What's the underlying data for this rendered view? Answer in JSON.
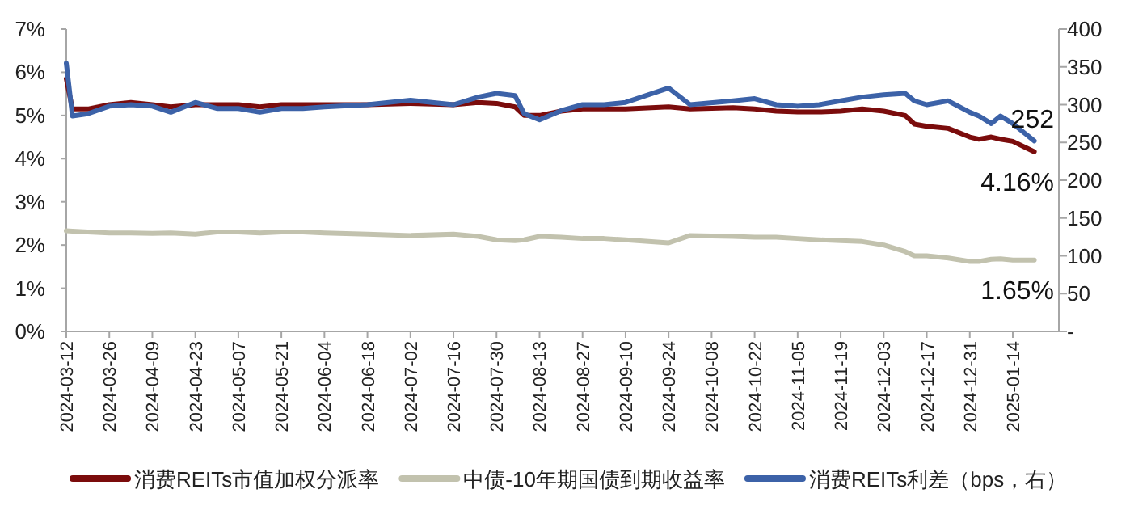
{
  "chart_data": {
    "type": "line",
    "x": [
      "2024-03-12",
      "2024-03-14",
      "2024-03-19",
      "2024-03-26",
      "2024-04-02",
      "2024-04-09",
      "2024-04-15",
      "2024-04-23",
      "2024-04-30",
      "2024-05-07",
      "2024-05-14",
      "2024-05-21",
      "2024-05-28",
      "2024-06-04",
      "2024-06-18",
      "2024-07-02",
      "2024-07-16",
      "2024-07-24",
      "2024-07-30",
      "2024-08-05",
      "2024-08-08",
      "2024-08-13",
      "2024-08-20",
      "2024-08-27",
      "2024-09-03",
      "2024-09-10",
      "2024-09-24",
      "2024-10-01",
      "2024-10-15",
      "2024-10-22",
      "2024-10-29",
      "2024-11-05",
      "2024-11-12",
      "2024-11-19",
      "2024-11-26",
      "2024-12-03",
      "2024-12-10",
      "2024-12-13",
      "2024-12-17",
      "2024-12-24",
      "2024-12-31",
      "2025-01-03",
      "2025-01-07",
      "2025-01-10",
      "2025-01-14",
      "2025-01-21"
    ],
    "series": [
      {
        "name": "消费REITs市值加权分派率",
        "color": "#7b0c0c",
        "values": [
          5.85,
          5.15,
          5.15,
          5.25,
          5.3,
          5.25,
          5.2,
          5.25,
          5.25,
          5.25,
          5.2,
          5.25,
          5.25,
          5.25,
          5.25,
          5.28,
          5.25,
          5.3,
          5.28,
          5.2,
          5.0,
          5.0,
          5.1,
          5.15,
          5.15,
          5.15,
          5.2,
          5.15,
          5.18,
          5.15,
          5.1,
          5.08,
          5.08,
          5.1,
          5.15,
          5.1,
          5.0,
          4.8,
          4.75,
          4.7,
          4.5,
          4.45,
          4.5,
          4.45,
          4.4,
          4.16
        ],
        "value_labels": [
          null,
          null,
          null,
          null,
          null,
          null,
          null,
          null,
          null,
          null,
          null,
          null,
          null,
          null,
          null,
          null,
          null,
          null,
          null,
          null,
          null,
          null,
          null,
          null,
          null,
          null,
          null,
          null,
          null,
          null,
          null,
          null,
          null,
          null,
          null,
          null,
          null,
          null,
          null,
          null,
          null,
          null,
          null,
          null,
          null,
          "4.16%"
        ]
      },
      {
        "name": "中债-10年期国债到期收益率",
        "color": "#c2c2ae",
        "values": [
          2.33,
          2.32,
          2.3,
          2.28,
          2.28,
          2.27,
          2.28,
          2.25,
          2.3,
          2.3,
          2.28,
          2.3,
          2.3,
          2.28,
          2.25,
          2.22,
          2.25,
          2.2,
          2.12,
          2.1,
          2.12,
          2.2,
          2.18,
          2.15,
          2.15,
          2.12,
          2.05,
          2.22,
          2.2,
          2.18,
          2.18,
          2.15,
          2.12,
          2.1,
          2.08,
          2.0,
          1.85,
          1.75,
          1.75,
          1.7,
          1.62,
          1.62,
          1.67,
          1.68,
          1.65,
          1.65
        ],
        "value_labels": [
          null,
          null,
          null,
          null,
          null,
          null,
          null,
          null,
          null,
          null,
          null,
          null,
          null,
          null,
          null,
          null,
          null,
          null,
          null,
          null,
          null,
          null,
          null,
          null,
          null,
          null,
          null,
          null,
          null,
          null,
          null,
          null,
          null,
          null,
          null,
          null,
          null,
          null,
          null,
          null,
          null,
          null,
          null,
          null,
          null,
          "1.65%"
        ]
      },
      {
        "name": "消费REITs利差（bps，右）",
        "color": "#3c62a8",
        "axis": "y2",
        "values": [
          355,
          285,
          288,
          298,
          300,
          298,
          290,
          303,
          295,
          295,
          290,
          295,
          295,
          297,
          300,
          306,
          300,
          310,
          315,
          312,
          288,
          280,
          292,
          300,
          300,
          303,
          322,
          300,
          305,
          308,
          300,
          298,
          300,
          305,
          310,
          313,
          315,
          305,
          300,
          305,
          290,
          285,
          275,
          285,
          275,
          252
        ],
        "value_labels": [
          null,
          null,
          null,
          null,
          null,
          null,
          null,
          null,
          null,
          null,
          null,
          null,
          null,
          null,
          null,
          null,
          null,
          null,
          null,
          null,
          null,
          null,
          null,
          null,
          null,
          null,
          null,
          null,
          null,
          null,
          null,
          null,
          null,
          null,
          null,
          null,
          null,
          null,
          null,
          null,
          null,
          null,
          null,
          null,
          null,
          "252"
        ]
      }
    ],
    "xlim": [
      "2024-03-12",
      "2025-01-29"
    ],
    "xticks": [
      "2024-03-12",
      "2024-03-26",
      "2024-04-09",
      "2024-04-23",
      "2024-05-07",
      "2024-05-21",
      "2024-06-04",
      "2024-06-18",
      "2024-07-02",
      "2024-07-16",
      "2024-07-30",
      "2024-08-13",
      "2024-08-27",
      "2024-09-10",
      "2024-09-24",
      "2024-10-08",
      "2024-10-22",
      "2024-11-05",
      "2024-11-19",
      "2024-12-03",
      "2024-12-17",
      "2024-12-31",
      "2025-01-14"
    ],
    "ylim": [
      0,
      7
    ],
    "yticks": [
      {
        "value": 0,
        "label": "0%"
      },
      {
        "value": 1,
        "label": "1%"
      },
      {
        "value": 2,
        "label": "2%"
      },
      {
        "value": 3,
        "label": "3%"
      },
      {
        "value": 4,
        "label": "4%"
      },
      {
        "value": 5,
        "label": "5%"
      },
      {
        "value": 6,
        "label": "6%"
      },
      {
        "value": 7,
        "label": "7%"
      }
    ],
    "y2lim": [
      0,
      400
    ],
    "y2ticks": [
      {
        "value": 0,
        "label": "-"
      },
      50,
      100,
      150,
      200,
      250,
      300,
      350,
      400
    ],
    "grid": false,
    "legend": "bottom",
    "line_style": "solid",
    "marker": "none"
  }
}
